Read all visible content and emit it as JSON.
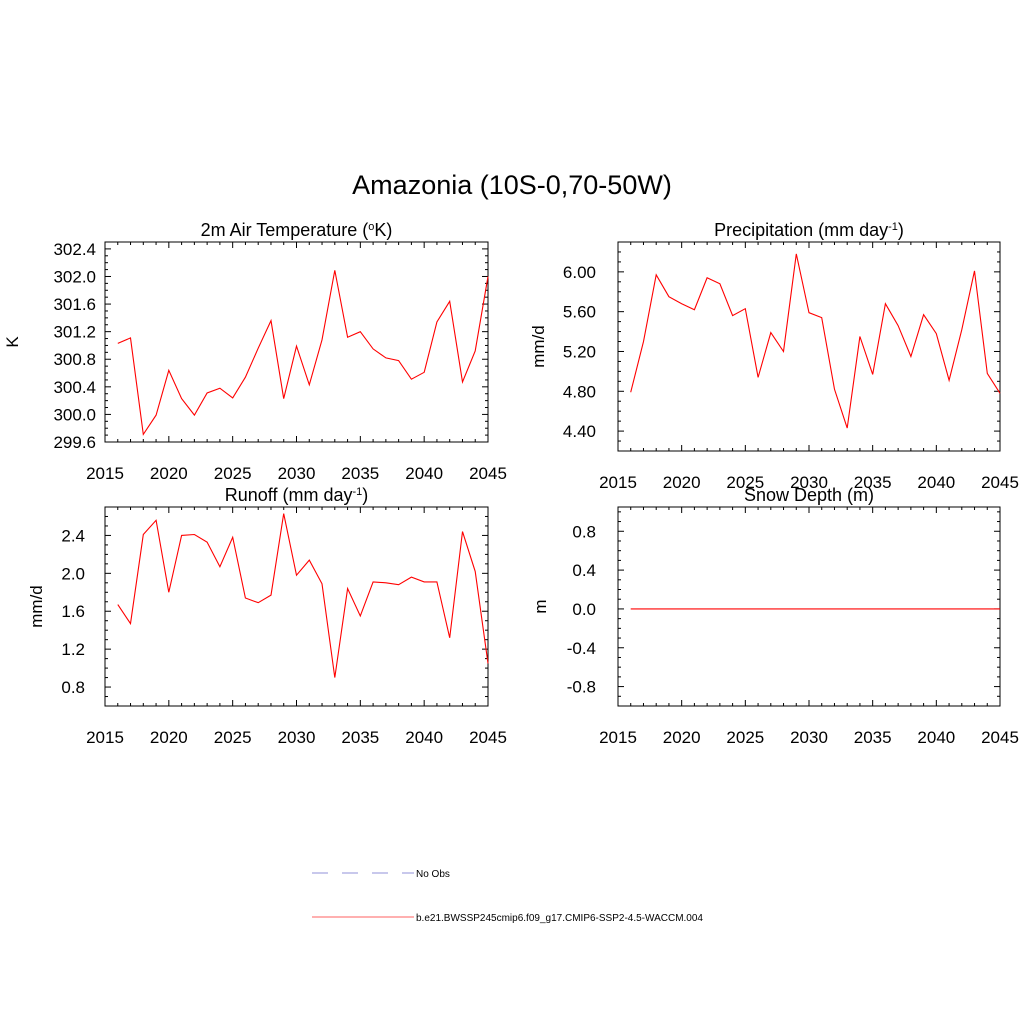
{
  "title": "Amazonia (10S-0,70-50W)",
  "legend": [
    {
      "label": "No Obs",
      "color": "#a8a8e0",
      "style": "dashed"
    },
    {
      "label": "b.e21.BWSSP245cmip6.f09_g17.CMIP6-SSP2-4.5-WACCM.004",
      "color": "#ff0000",
      "style": "solid"
    }
  ],
  "chart_data": [
    {
      "type": "line",
      "title": "2m Air Temperature (°K)",
      "title_parts": [
        "2m Air Temperature (",
        "o",
        "K)"
      ],
      "ylabel": "K",
      "xlim": [
        2015,
        2045
      ],
      "ylim": [
        299.6,
        302.5
      ],
      "xticks": [
        2015,
        2020,
        2025,
        2030,
        2035,
        2040,
        2045
      ],
      "yticks": [
        299.6,
        300.0,
        300.4,
        300.8,
        301.2,
        301.6,
        302.0,
        302.4
      ],
      "ytick_labels": [
        "299.6",
        "300.0",
        "300.4",
        "300.8",
        "301.2",
        "301.6",
        "302.0",
        "302.4"
      ],
      "x": [
        2016,
        2017,
        2018,
        2019,
        2020,
        2021,
        2022,
        2023,
        2024,
        2025,
        2026,
        2027,
        2028,
        2029,
        2030,
        2031,
        2032,
        2033,
        2034,
        2035,
        2036,
        2037,
        2038,
        2039,
        2040,
        2041,
        2042,
        2043,
        2044,
        2045
      ],
      "values": [
        301.03,
        301.11,
        299.71,
        299.99,
        300.64,
        300.23,
        299.99,
        300.31,
        300.38,
        300.24,
        300.54,
        300.96,
        301.36,
        300.23,
        300.99,
        300.43,
        301.08,
        302.09,
        301.12,
        301.2,
        300.95,
        300.82,
        300.78,
        300.51,
        300.61,
        301.34,
        301.64,
        300.47,
        300.92,
        302.0
      ],
      "color": "#ff0000"
    },
    {
      "type": "line",
      "title": "Precipitation (mm day-1)",
      "title_parts": [
        "Precipitation (mm day",
        "-1",
        ")"
      ],
      "ylabel": "mm/d",
      "xlim": [
        2015,
        2045
      ],
      "ylim": [
        4.2,
        6.3
      ],
      "xticks": [
        2015,
        2020,
        2025,
        2030,
        2035,
        2040,
        2045
      ],
      "yticks": [
        4.4,
        4.8,
        5.2,
        5.6,
        6.0
      ],
      "ytick_labels": [
        "4.40",
        "4.80",
        "5.20",
        "5.60",
        "6.00"
      ],
      "x": [
        2016,
        2017,
        2018,
        2019,
        2020,
        2021,
        2022,
        2023,
        2024,
        2025,
        2026,
        2027,
        2028,
        2029,
        2030,
        2031,
        2032,
        2033,
        2034,
        2035,
        2036,
        2037,
        2038,
        2039,
        2040,
        2041,
        2042,
        2043,
        2044,
        2045
      ],
      "values": [
        4.79,
        5.3,
        5.97,
        5.75,
        5.68,
        5.62,
        5.94,
        5.88,
        5.56,
        5.63,
        4.94,
        5.39,
        5.2,
        6.18,
        5.59,
        5.54,
        4.82,
        4.43,
        5.35,
        4.97,
        5.68,
        5.46,
        5.15,
        5.57,
        5.38,
        4.91,
        5.42,
        6.01,
        4.98,
        4.78
      ],
      "color": "#ff0000"
    },
    {
      "type": "line",
      "title": "Runoff (mm day-1)",
      "title_parts": [
        "Runoff (mm day",
        "-1",
        ")"
      ],
      "ylabel": "mm/d",
      "xlim": [
        2015,
        2045
      ],
      "ylim": [
        0.6,
        2.7
      ],
      "xticks": [
        2015,
        2020,
        2025,
        2030,
        2035,
        2040,
        2045
      ],
      "yticks": [
        0.8,
        1.2,
        1.6,
        2.0,
        2.4
      ],
      "ytick_labels": [
        "0.8",
        "1.2",
        "1.6",
        "2.0",
        "2.4"
      ],
      "x": [
        2016,
        2017,
        2018,
        2019,
        2020,
        2021,
        2022,
        2023,
        2024,
        2025,
        2026,
        2027,
        2028,
        2029,
        2030,
        2031,
        2032,
        2033,
        2034,
        2035,
        2036,
        2037,
        2038,
        2039,
        2040,
        2041,
        2042,
        2043,
        2044,
        2045
      ],
      "values": [
        1.67,
        1.47,
        2.41,
        2.56,
        1.8,
        2.4,
        2.41,
        2.33,
        2.07,
        2.38,
        1.74,
        1.69,
        1.77,
        2.63,
        1.98,
        2.14,
        1.89,
        0.9,
        1.84,
        1.55,
        1.91,
        1.9,
        1.88,
        1.96,
        1.91,
        1.91,
        1.32,
        2.44,
        2.02,
        1.05
      ],
      "color": "#ff0000"
    },
    {
      "type": "line",
      "title": "Snow Depth (m)",
      "title_parts": [
        "Snow Depth (m)"
      ],
      "ylabel": "m",
      "xlim": [
        2015,
        2045
      ],
      "ylim": [
        -1.0,
        1.05
      ],
      "xticks": [
        2015,
        2020,
        2025,
        2030,
        2035,
        2040,
        2045
      ],
      "yticks": [
        -0.8,
        -0.4,
        0.0,
        0.4,
        0.8
      ],
      "ytick_labels": [
        "-0.8",
        "-0.4",
        "0.0",
        "0.4",
        "0.8"
      ],
      "x": [
        2016,
        2017,
        2018,
        2019,
        2020,
        2021,
        2022,
        2023,
        2024,
        2025,
        2026,
        2027,
        2028,
        2029,
        2030,
        2031,
        2032,
        2033,
        2034,
        2035,
        2036,
        2037,
        2038,
        2039,
        2040,
        2041,
        2042,
        2043,
        2044,
        2045
      ],
      "values": [
        0,
        0,
        0,
        0,
        0,
        0,
        0,
        0,
        0,
        0,
        0,
        0,
        0,
        0,
        0,
        0,
        0,
        0,
        0,
        0,
        0,
        0,
        0,
        0,
        0,
        0,
        0,
        0,
        0,
        0
      ],
      "color": "#ff0000"
    }
  ]
}
